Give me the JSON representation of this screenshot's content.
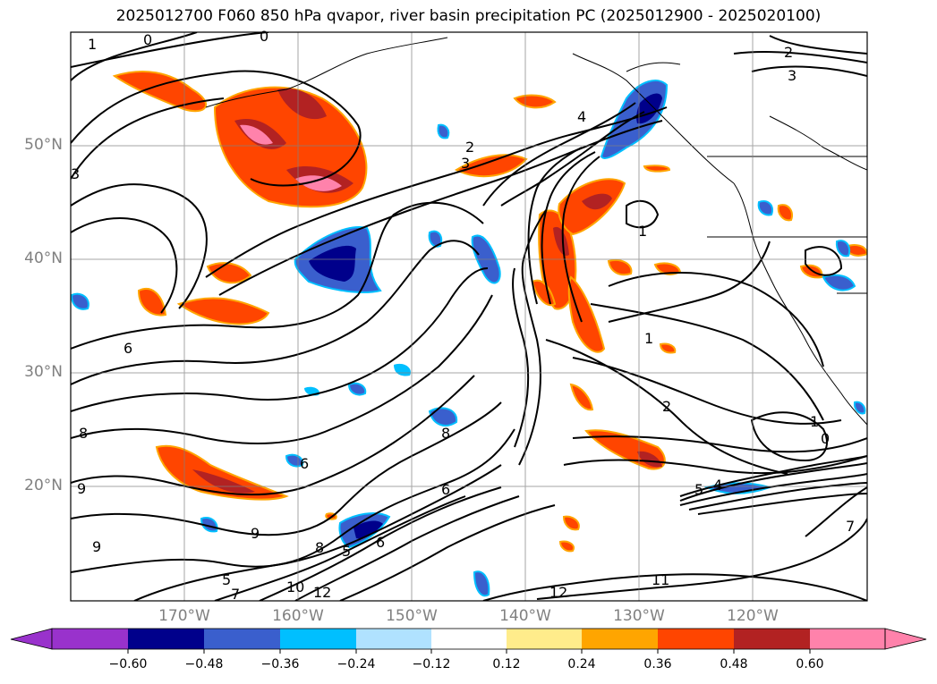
{
  "title": "2025012700 F060 850 hPa qvapor, river basin precipitation PC (2025012900 - 2025020100)",
  "map": {
    "extent_lon": [
      -180,
      -110
    ],
    "extent_lat": [
      10,
      60
    ],
    "lat_labels": [
      "50°N",
      "40°N",
      "30°N",
      "20°N"
    ],
    "lon_labels": [
      "170°W",
      "160°W",
      "150°W",
      "140°W",
      "130°W",
      "120°W"
    ],
    "contour_labels": [
      "1",
      "0",
      "0",
      "2",
      "3",
      "4",
      "2",
      "3",
      "1",
      "1",
      "2",
      "1",
      "0",
      "6",
      "8",
      "9",
      "9",
      "6",
      "8",
      "6",
      "5",
      "9",
      "5",
      "6",
      "7",
      "10",
      "12",
      "8",
      "12",
      "11",
      "7",
      "5",
      "4",
      "3"
    ]
  },
  "colorbar": {
    "extend": "both",
    "colors": [
      "#9932cc",
      "#00008b",
      "#3a5fcd",
      "#00bfff",
      "#b0e2ff",
      "#ffffff",
      "#ffec8b",
      "#ffa500",
      "#ff4500",
      "#b22222",
      "#ff82ab",
      "#ff82ab"
    ],
    "tick_labels": [
      "−0.60",
      "−0.48",
      "−0.36",
      "−0.24",
      "−0.12",
      "0.12",
      "0.24",
      "0.36",
      "0.48",
      "0.60"
    ]
  },
  "colors": {
    "negative_strong": "#00008b",
    "negative_mid": "#3a5fcd",
    "negative_weak": "#00bfff",
    "positive_weak": "#ffec8b",
    "positive_mid": "#ff4500",
    "positive_strong": "#b22222",
    "positive_max": "#ff82ab"
  }
}
